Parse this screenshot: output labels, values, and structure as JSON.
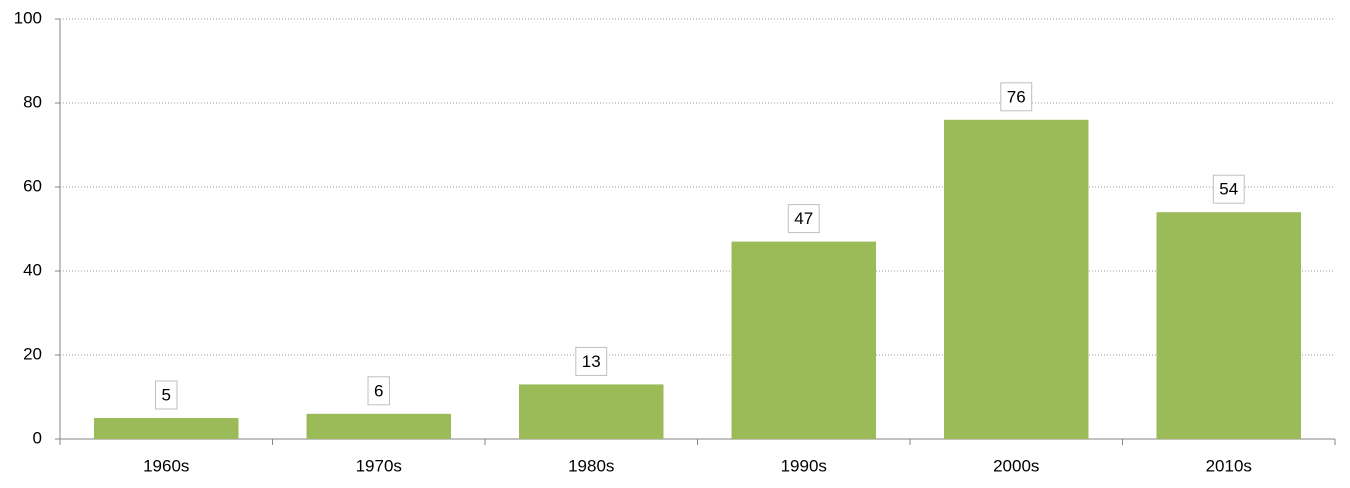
{
  "chart_data": {
    "type": "bar",
    "categories": [
      "1960s",
      "1970s",
      "1980s",
      "1990s",
      "2000s",
      "2010s"
    ],
    "values": [
      5,
      6,
      13,
      47,
      76,
      54
    ],
    "color": "#9bbb59",
    "ylim": [
      0,
      100
    ],
    "yticks": [
      0,
      20,
      40,
      60,
      80,
      100
    ],
    "grid": true,
    "data_labels": true
  }
}
